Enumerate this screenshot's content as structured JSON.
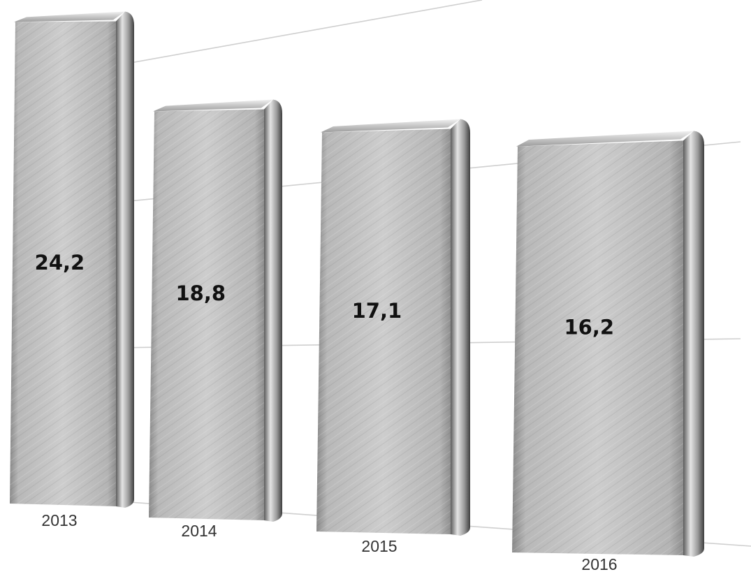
{
  "chart_data": {
    "type": "bar",
    "categories": [
      "2013",
      "2014",
      "2015",
      "2016"
    ],
    "values": [
      24.2,
      18.8,
      17.1,
      16.2
    ],
    "value_labels": [
      "24,2",
      "18,8",
      "17,1",
      "16,2"
    ],
    "title": "",
    "xlabel": "",
    "ylabel": "",
    "grid": true,
    "legend": "none",
    "bar_color": "#a9a9a9"
  }
}
